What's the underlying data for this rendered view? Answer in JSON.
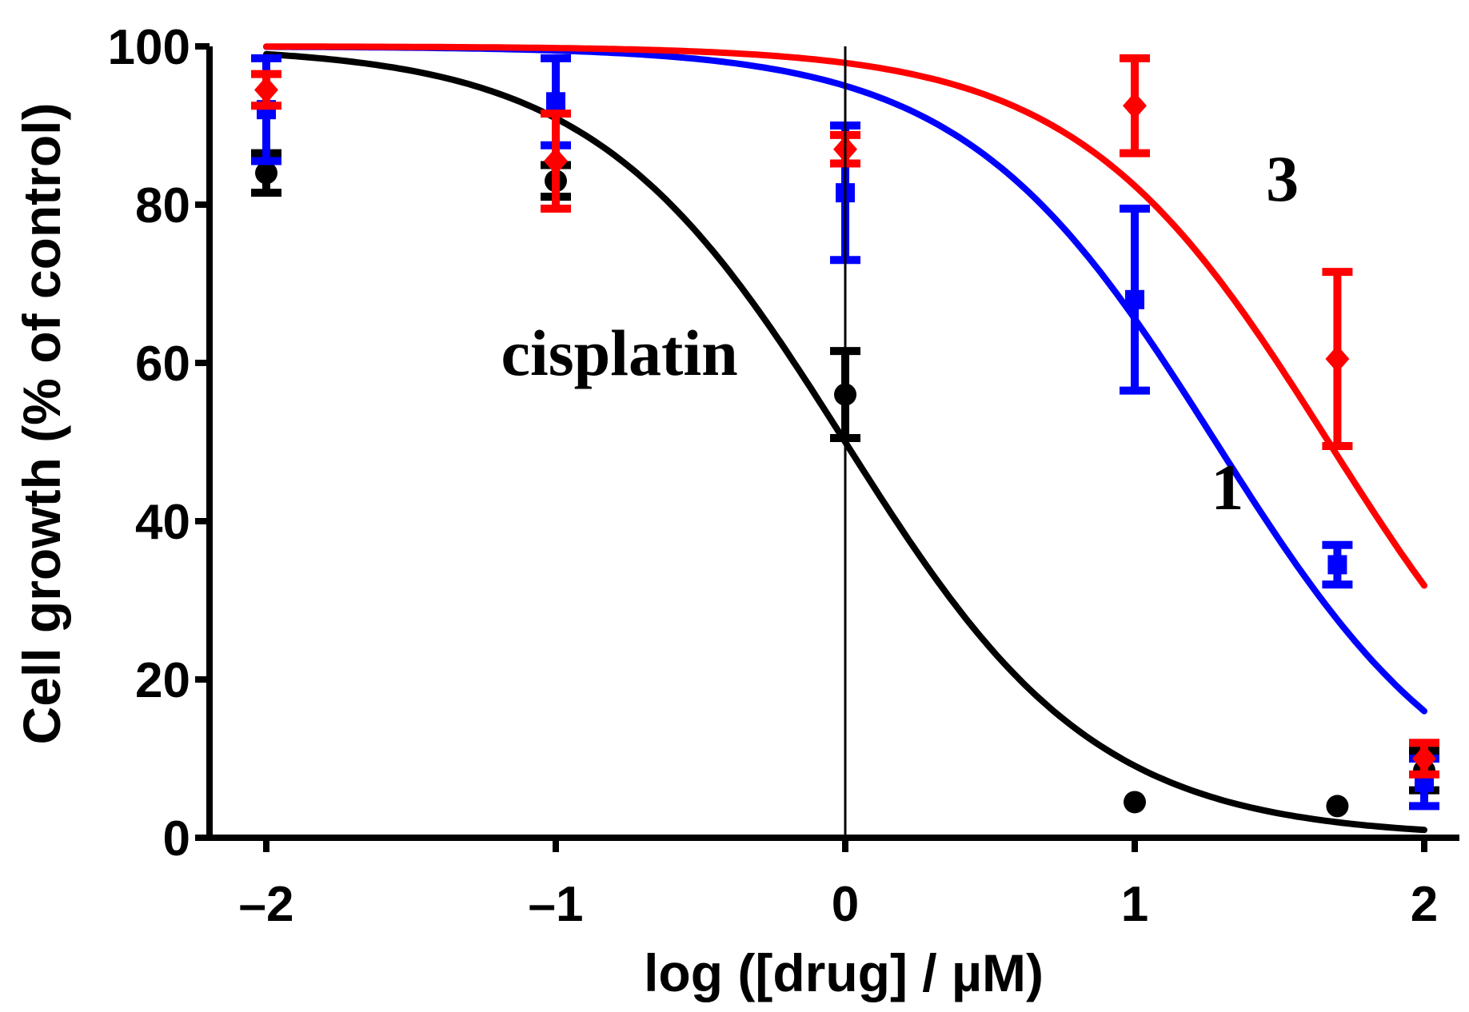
{
  "chart_data": {
    "type": "scatter",
    "title": "",
    "xlabel": "log ([drug] / µM)",
    "ylabel": "Cell growth (% of control)",
    "xlim": [
      -2.2,
      2.1
    ],
    "ylim": [
      0,
      100
    ],
    "xticks": [
      -2,
      -1,
      0,
      1,
      2
    ],
    "xtick_labels": [
      "–2",
      "–1",
      "0",
      "1",
      "2"
    ],
    "yticks": [
      0,
      20,
      40,
      60,
      80,
      100
    ],
    "ytick_labels": [
      "0",
      "20",
      "40",
      "60",
      "80",
      "100"
    ],
    "grid": false,
    "zero_line": true,
    "series": [
      {
        "name": "cisplatin",
        "color": "#000000",
        "marker": "circle",
        "fit": {
          "model": "sigmoid",
          "top": 100,
          "bottom": 0,
          "logEC50": 0.0,
          "hill": 1.0
        },
        "points": [
          {
            "x": -2,
            "y": 84,
            "err": 2.5
          },
          {
            "x": -1,
            "y": 83,
            "err": 2.0
          },
          {
            "x": 0,
            "y": 56,
            "err": 5.5
          },
          {
            "x": 1,
            "y": 4.5,
            "err": 0
          },
          {
            "x": 1.7,
            "y": 4,
            "err": 0
          },
          {
            "x": 2,
            "y": 8.5,
            "err": 2.5
          }
        ]
      },
      {
        "name": "1",
        "color": "#0000ff",
        "marker": "square",
        "fit": {
          "model": "sigmoid",
          "top": 100,
          "bottom": 0,
          "logEC50": 1.28,
          "hill": 1.0
        },
        "points": [
          {
            "x": -2,
            "y": 92,
            "err": 6.5
          },
          {
            "x": -1,
            "y": 93,
            "err": 5.5
          },
          {
            "x": 0,
            "y": 81.5,
            "err": 8.5
          },
          {
            "x": 1,
            "y": 68,
            "err": 11.5
          },
          {
            "x": 1.7,
            "y": 34.5,
            "err": 2.5
          },
          {
            "x": 2,
            "y": 7,
            "err": 3
          }
        ]
      },
      {
        "name": "3",
        "color": "#ff0000",
        "marker": "diamond",
        "fit": {
          "model": "sigmoid",
          "top": 100,
          "bottom": 0,
          "logEC50": 1.67,
          "hill": 1.0
        },
        "points": [
          {
            "x": -2,
            "y": 94.5,
            "err": 2.0
          },
          {
            "x": -1,
            "y": 85.5,
            "err": 6.0
          },
          {
            "x": 0,
            "y": 87,
            "err": 1.8
          },
          {
            "x": 1,
            "y": 92.5,
            "err": 6.0
          },
          {
            "x": 1.7,
            "y": 60.5,
            "err": 11.0
          },
          {
            "x": 2,
            "y": 10,
            "err": 2.0
          }
        ]
      }
    ],
    "annotations": [
      {
        "text": "cisplatin",
        "x": -0.78,
        "y": 58.5
      },
      {
        "text": "1",
        "x": 1.32,
        "y": 41.5
      },
      {
        "text": "3",
        "x": 1.51,
        "y": 80.5
      }
    ]
  }
}
